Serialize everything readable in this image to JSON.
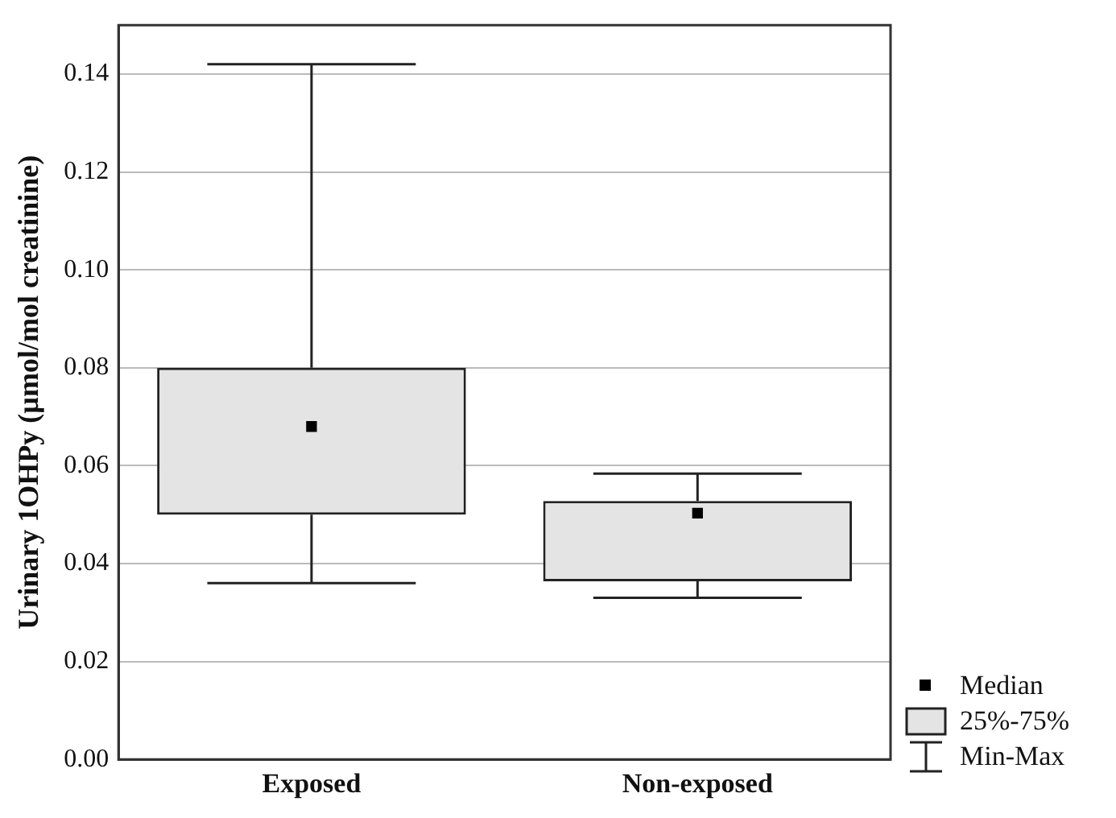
{
  "chart_data": {
    "type": "box",
    "ylabel": "Urinary 1OHPy (µmol/mol creatinine)",
    "categories": [
      "Exposed",
      "Non-exposed"
    ],
    "boxes": [
      {
        "low": 0.036,
        "q1": 0.05,
        "median": 0.068,
        "q3": 0.08,
        "high": 0.142
      },
      {
        "low": 0.033,
        "q1": 0.0364,
        "median": 0.0503,
        "q3": 0.0528,
        "high": 0.0584
      }
    ],
    "color": "#222222",
    "ylim": [
      0,
      0.15
    ],
    "yticks": [
      {
        "value": 0,
        "label": "0.00"
      },
      {
        "value": 0.02,
        "label": "0.02"
      },
      {
        "value": 0.04,
        "label": "0.04"
      },
      {
        "value": 0.06,
        "label": "0.06"
      },
      {
        "value": 0.08,
        "label": "0.08"
      },
      {
        "value": 0.1,
        "label": "0.10"
      },
      {
        "value": 0.12,
        "label": "0.12"
      },
      {
        "value": 0.14,
        "label": "0.14"
      }
    ],
    "grid": "y",
    "marker": "square",
    "annotations": [
      "Median",
      "25%-75%",
      "Min-Max"
    ]
  }
}
